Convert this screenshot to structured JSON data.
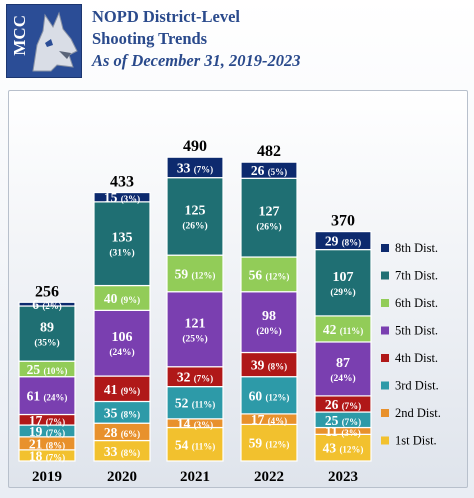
{
  "header": {
    "logo_text": "MCC",
    "title_line1": "NOPD District-Level",
    "title_line2": "Shooting Trends",
    "title_line3": "As of December 31, 2019-2023"
  },
  "colors": {
    "1st Dist.": "#f2c12e",
    "2nd Dist.": "#e8912c",
    "3rd Dist.": "#2d9aa8",
    "4th Dist.": "#b01818",
    "5th Dist.": "#7a3fb0",
    "6th Dist.": "#92cc58",
    "7th Dist.": "#1f6f73",
    "8th Dist.": "#0d2a6e"
  },
  "chart_data": {
    "type": "bar",
    "stacked": true,
    "categories": [
      "2019",
      "2020",
      "2021",
      "2022",
      "2023"
    ],
    "totals": [
      256,
      433,
      490,
      482,
      370
    ],
    "series": [
      {
        "name": "1st Dist.",
        "values": [
          18,
          33,
          54,
          59,
          43
        ],
        "labels": [
          "(7%)",
          "(8%)",
          "(11%)",
          "(12%)",
          "(12%)"
        ]
      },
      {
        "name": "2nd Dist.",
        "values": [
          21,
          28,
          14,
          17,
          11
        ],
        "labels": [
          "(8%)",
          "(6%)",
          "(3%)",
          "(4%)",
          "(3%)"
        ]
      },
      {
        "name": "3rd Dist.",
        "values": [
          19,
          35,
          52,
          60,
          25
        ],
        "labels": [
          "(7%)",
          "(8%)",
          "(11%)",
          "(12%)",
          "(7%)"
        ]
      },
      {
        "name": "4th Dist.",
        "values": [
          17,
          41,
          32,
          39,
          26
        ],
        "labels": [
          "(7%)",
          "(9%)",
          "(7%)",
          "(8%)",
          "(7%)"
        ]
      },
      {
        "name": "5th Dist.",
        "values": [
          61,
          106,
          121,
          98,
          87
        ],
        "labels": [
          "(24%)",
          "(24%)",
          "(25%)",
          "(20%)",
          "(24%)"
        ]
      },
      {
        "name": "6th Dist.",
        "values": [
          25,
          40,
          59,
          56,
          42
        ],
        "labels": [
          "(10%)",
          "(9%)",
          "(12%)",
          "(12%)",
          "(11%)"
        ]
      },
      {
        "name": "7th Dist.",
        "values": [
          89,
          135,
          125,
          127,
          107
        ],
        "labels": [
          "(35%)",
          "(31%)",
          "(26%)",
          "(26%)",
          "(29%)"
        ]
      },
      {
        "name": "8th Dist.",
        "values": [
          6,
          15,
          33,
          26,
          29
        ],
        "labels": [
          "(2%)",
          "(3%)",
          "(7%)",
          "(5%)",
          "(8%)"
        ]
      }
    ],
    "legend_order": [
      "8th Dist.",
      "7th Dist.",
      "6th Dist.",
      "5th Dist.",
      "4th Dist.",
      "3rd Dist.",
      "2nd Dist.",
      "1st Dist."
    ],
    "legend_position": "right",
    "ylim": [
      0,
      520
    ],
    "grid": false
  }
}
